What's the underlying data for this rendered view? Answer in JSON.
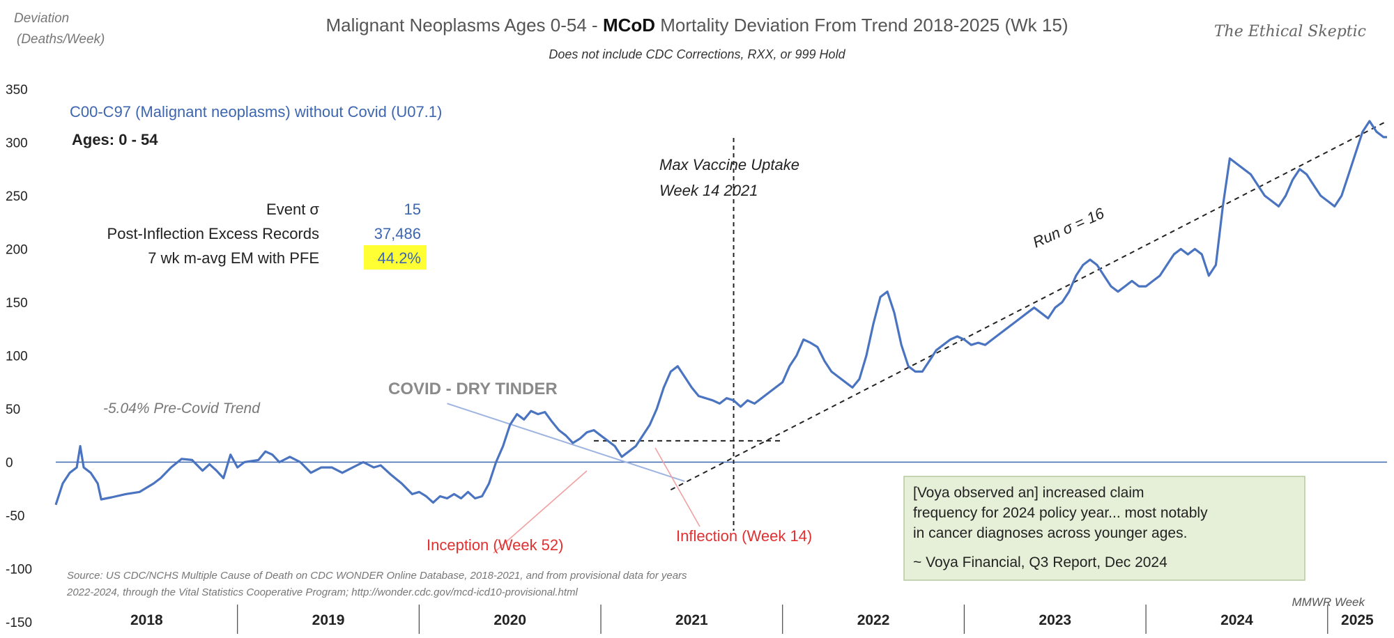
{
  "header": {
    "title_part1": "Malignant Neoplasms Ages 0-54 - ",
    "title_bold": "MCoD",
    "title_part2": " Mortality Deviation From Trend  2018-2025 (Wk 15)",
    "subtitle": "Does not include CDC Corrections, RXX, or 999 Hold",
    "ylabel_line1": "Deviation",
    "ylabel_line2": "(Deaths/Week)",
    "brand": "The Ethical Skeptic"
  },
  "legend": {
    "series_label": "C00-C97 (Malignant neoplasms) without Covid (U07.1)",
    "ages": "Ages: 0 - 54"
  },
  "stats": [
    {
      "label": "Event σ",
      "value": "15"
    },
    {
      "label": "Post-Inflection Excess Records",
      "value": "37,486"
    },
    {
      "label": "7 wk m-avg EM with PFE",
      "value": "44.2%",
      "highlight": "#ffff33"
    }
  ],
  "annotations": {
    "pre_covid_trend": "-5.04% Pre-Covid Trend",
    "dry_tinder": "COVID - DRY TINDER",
    "vaccine_line1": "Max Vaccine Uptake",
    "vaccine_line2": "Week 14 2021",
    "run_sigma": "Run σ = 16",
    "inception": "Inception (Week 52)",
    "inflection": "Inflection (Week 14)",
    "source_line1": "Source: US CDC/NCHS Multiple Cause of Death on CDC WONDER Online Database, 2018-2021, and from provisional data for years",
    "source_line2": "2022-2024, through the Vital Statistics Cooperative Program; http://wonder.cdc.gov/mcd-icd10-provisional.html",
    "quote_line1": "[Voya observed  an] increased claim",
    "quote_line2": "frequency for 2024 policy year... most notably",
    "quote_line3": "in cancer diagnoses across younger ages.",
    "quote_line4": "~ Voya Financial, Q3 Report, Dec 2024",
    "xaxis_label": "MMWR Week"
  },
  "colors": {
    "series": "#4a73c0",
    "pre_trend_line": "#9db3e0",
    "annotation_red": "#e03030",
    "highlight": "#ffff33",
    "quote_box_fill": "#e6f0d8",
    "quote_box_border": "#b6c9a0"
  },
  "chart_data": {
    "type": "line",
    "title": "Malignant Neoplasms Ages 0-54 - MCoD Mortality Deviation From Trend  2018-2025 (Wk 15)",
    "ylabel": "Deviation (Deaths/Week)",
    "xlabel": "MMWR Week",
    "ylim": [
      -150,
      350
    ],
    "yticks": [
      -150,
      -100,
      -50,
      0,
      50,
      100,
      150,
      200,
      250,
      300,
      350
    ],
    "year_labels": [
      "2018",
      "2019",
      "2020",
      "2021",
      "2022",
      "2023",
      "2024",
      "2025"
    ],
    "x_unit": "weeks since 2018 week 1",
    "x_max": 381,
    "grid": false,
    "series": [
      {
        "name": "C00-C97 (Malignant neoplasms) without Covid (U07.1)",
        "points": [
          [
            0,
            -40
          ],
          [
            2,
            -20
          ],
          [
            4,
            -10
          ],
          [
            6,
            -5
          ],
          [
            7,
            15
          ],
          [
            8,
            -5
          ],
          [
            10,
            -10
          ],
          [
            12,
            -20
          ],
          [
            13,
            -35
          ],
          [
            16,
            -33
          ],
          [
            20,
            -30
          ],
          [
            24,
            -28
          ],
          [
            28,
            -20
          ],
          [
            30,
            -15
          ],
          [
            33,
            -5
          ],
          [
            36,
            3
          ],
          [
            39,
            2
          ],
          [
            42,
            -8
          ],
          [
            44,
            -2
          ],
          [
            46,
            -8
          ],
          [
            48,
            -15
          ],
          [
            50,
            7
          ],
          [
            52,
            -5
          ],
          [
            54,
            0
          ],
          [
            58,
            2
          ],
          [
            60,
            10
          ],
          [
            62,
            7
          ],
          [
            64,
            0
          ],
          [
            67,
            5
          ],
          [
            70,
            0
          ],
          [
            73,
            -10
          ],
          [
            76,
            -5
          ],
          [
            79,
            -5
          ],
          [
            82,
            -10
          ],
          [
            85,
            -5
          ],
          [
            88,
            0
          ],
          [
            91,
            -5
          ],
          [
            93,
            -3
          ],
          [
            96,
            -12
          ],
          [
            99,
            -20
          ],
          [
            102,
            -30
          ],
          [
            104,
            -28
          ],
          [
            106,
            -32
          ],
          [
            108,
            -38
          ],
          [
            110,
            -32
          ],
          [
            112,
            -34
          ],
          [
            114,
            -30
          ],
          [
            116,
            -34
          ],
          [
            118,
            -28
          ],
          [
            120,
            -34
          ],
          [
            122,
            -32
          ],
          [
            124,
            -20
          ],
          [
            126,
            0
          ],
          [
            128,
            15
          ],
          [
            130,
            35
          ],
          [
            132,
            45
          ],
          [
            134,
            40
          ],
          [
            136,
            48
          ],
          [
            138,
            45
          ],
          [
            140,
            47
          ],
          [
            142,
            38
          ],
          [
            144,
            30
          ],
          [
            146,
            25
          ],
          [
            148,
            18
          ],
          [
            150,
            22
          ],
          [
            152,
            28
          ],
          [
            154,
            30
          ],
          [
            156,
            25
          ],
          [
            158,
            20
          ],
          [
            160,
            15
          ],
          [
            162,
            5
          ],
          [
            164,
            10
          ],
          [
            166,
            15
          ],
          [
            168,
            25
          ],
          [
            170,
            35
          ],
          [
            172,
            50
          ],
          [
            174,
            70
          ],
          [
            176,
            85
          ],
          [
            178,
            90
          ],
          [
            180,
            80
          ],
          [
            182,
            70
          ],
          [
            184,
            62
          ],
          [
            186,
            60
          ],
          [
            188,
            58
          ],
          [
            190,
            55
          ],
          [
            192,
            60
          ],
          [
            194,
            58
          ],
          [
            196,
            52
          ],
          [
            198,
            58
          ],
          [
            200,
            55
          ],
          [
            202,
            60
          ],
          [
            204,
            65
          ],
          [
            206,
            70
          ],
          [
            208,
            75
          ],
          [
            210,
            90
          ],
          [
            212,
            100
          ],
          [
            214,
            115
          ],
          [
            216,
            112
          ],
          [
            218,
            108
          ],
          [
            220,
            95
          ],
          [
            222,
            85
          ],
          [
            224,
            80
          ],
          [
            226,
            75
          ],
          [
            228,
            70
          ],
          [
            230,
            78
          ],
          [
            232,
            100
          ],
          [
            234,
            130
          ],
          [
            236,
            155
          ],
          [
            238,
            160
          ],
          [
            240,
            140
          ],
          [
            242,
            110
          ],
          [
            244,
            90
          ],
          [
            246,
            85
          ],
          [
            248,
            85
          ],
          [
            250,
            95
          ],
          [
            252,
            105
          ],
          [
            254,
            110
          ],
          [
            256,
            115
          ],
          [
            258,
            118
          ],
          [
            260,
            115
          ],
          [
            262,
            110
          ],
          [
            264,
            112
          ],
          [
            266,
            110
          ],
          [
            268,
            115
          ],
          [
            270,
            120
          ],
          [
            272,
            125
          ],
          [
            274,
            130
          ],
          [
            276,
            135
          ],
          [
            278,
            140
          ],
          [
            280,
            145
          ],
          [
            282,
            140
          ],
          [
            284,
            135
          ],
          [
            286,
            145
          ],
          [
            288,
            150
          ],
          [
            290,
            160
          ],
          [
            292,
            175
          ],
          [
            294,
            185
          ],
          [
            296,
            190
          ],
          [
            298,
            185
          ],
          [
            300,
            175
          ],
          [
            302,
            165
          ],
          [
            304,
            160
          ],
          [
            306,
            165
          ],
          [
            308,
            170
          ],
          [
            310,
            165
          ],
          [
            312,
            165
          ],
          [
            314,
            170
          ],
          [
            316,
            175
          ],
          [
            318,
            185
          ],
          [
            320,
            195
          ],
          [
            322,
            200
          ],
          [
            324,
            195
          ],
          [
            326,
            200
          ],
          [
            328,
            195
          ],
          [
            330,
            175
          ],
          [
            332,
            185
          ],
          [
            334,
            240
          ],
          [
            336,
            285
          ],
          [
            338,
            280
          ],
          [
            340,
            275
          ],
          [
            342,
            270
          ],
          [
            344,
            260
          ],
          [
            346,
            250
          ],
          [
            348,
            245
          ],
          [
            350,
            240
          ],
          [
            352,
            250
          ],
          [
            354,
            265
          ],
          [
            356,
            275
          ],
          [
            358,
            270
          ],
          [
            360,
            260
          ],
          [
            362,
            250
          ],
          [
            364,
            245
          ],
          [
            366,
            240
          ],
          [
            368,
            250
          ],
          [
            370,
            270
          ],
          [
            372,
            290
          ],
          [
            374,
            310
          ],
          [
            376,
            320
          ],
          [
            378,
            310
          ],
          [
            380,
            305
          ],
          [
            381,
            305
          ]
        ]
      }
    ],
    "pre_covid_trend": {
      "x": [
        112,
        180
      ],
      "y": [
        55,
        -18
      ]
    },
    "run_trend": {
      "x": [
        176,
        381
      ],
      "y": [
        -26,
        320
      ]
    },
    "horizontal_dashed": {
      "x": [
        154,
        208
      ],
      "y": 20
    },
    "vaccine_week_line_x": 194
  }
}
